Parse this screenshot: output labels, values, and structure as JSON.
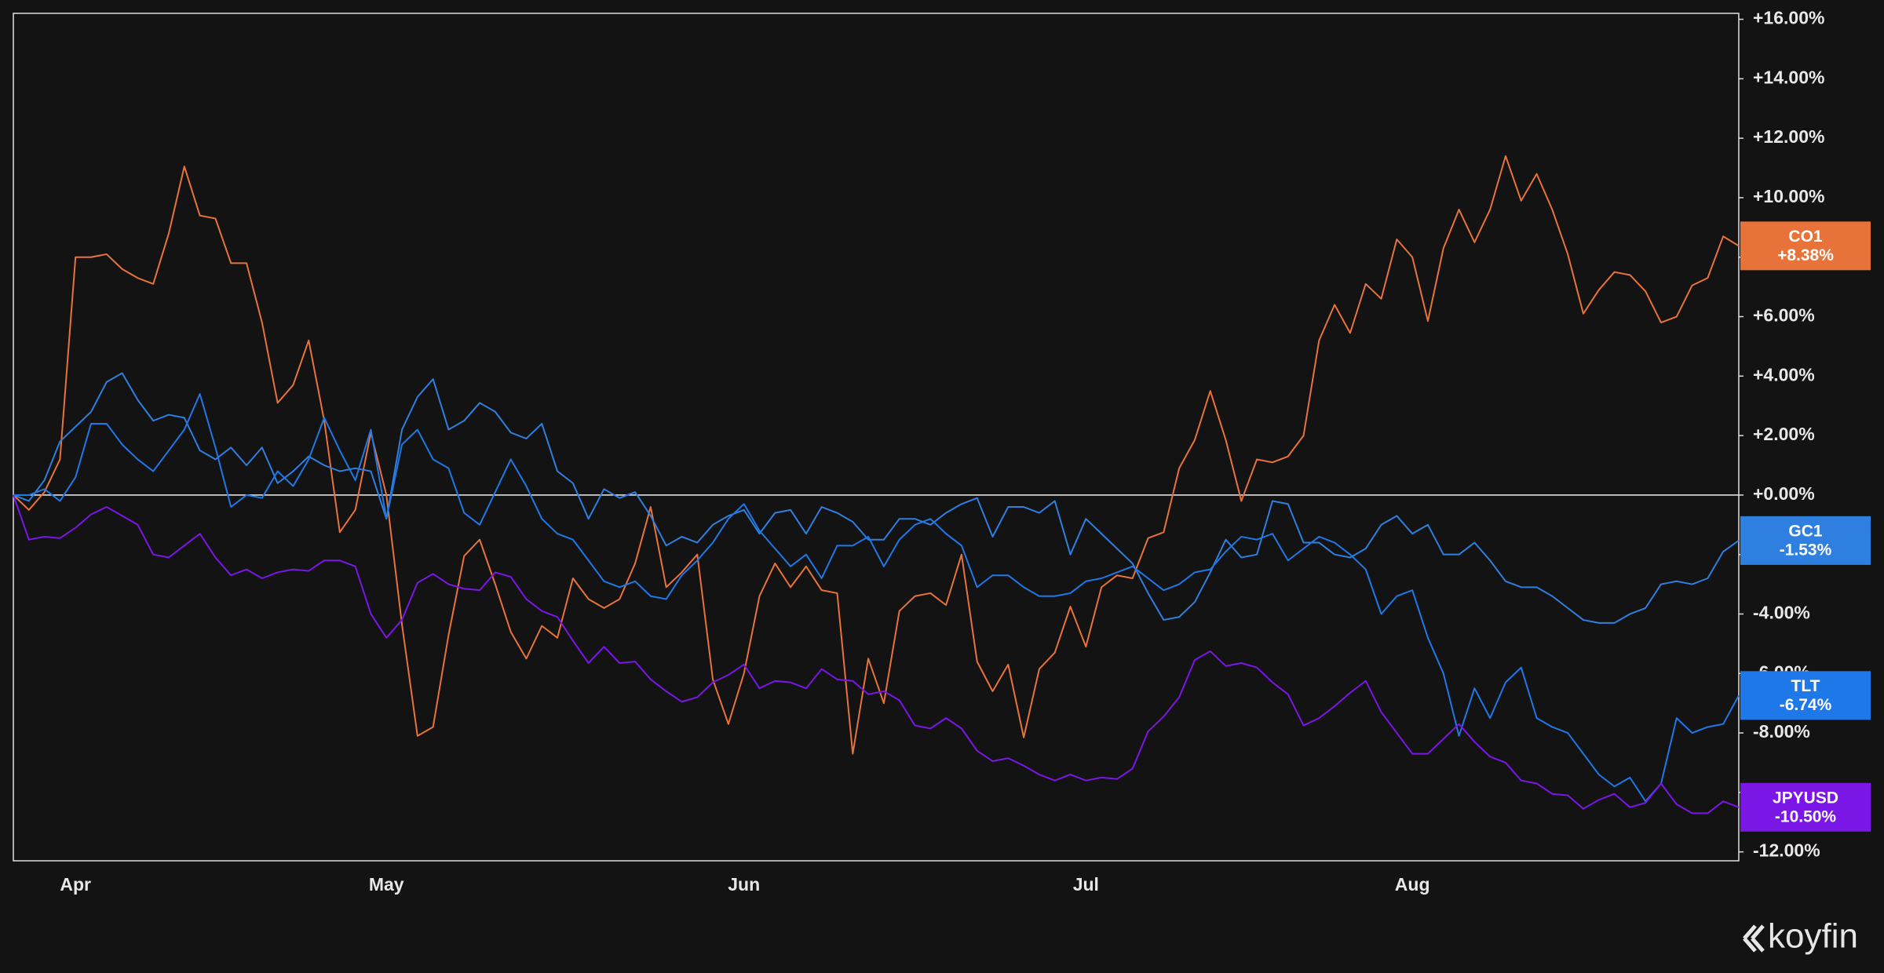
{
  "chart_data": {
    "type": "line",
    "brand": "koyfin",
    "categories": [
      null,
      null,
      null,
      null,
      "Apr",
      null,
      null,
      null,
      null,
      null,
      null,
      null,
      null,
      null,
      null,
      null,
      null,
      null,
      null,
      null,
      null,
      null,
      null,
      null,
      "May",
      null,
      null,
      null,
      null,
      null,
      null,
      null,
      null,
      null,
      null,
      null,
      null,
      null,
      null,
      null,
      null,
      null,
      null,
      null,
      null,
      null,
      null,
      "Jun",
      null,
      null,
      null,
      null,
      null,
      null,
      null,
      null,
      null,
      null,
      null,
      null,
      null,
      null,
      null,
      null,
      null,
      null,
      null,
      null,
      null,
      "Jul",
      null,
      null,
      null,
      null,
      null,
      null,
      null,
      null,
      null,
      null,
      null,
      null,
      null,
      null,
      null,
      null,
      null,
      null,
      null,
      null,
      "Aug",
      null,
      null,
      null,
      null,
      null,
      null,
      null,
      null,
      null,
      null,
      null,
      null,
      null,
      null,
      null,
      null,
      null,
      null,
      null,
      null,
      null
    ],
    "ylim": [
      -12.3,
      16.2
    ],
    "yticks": [
      {
        "value": 16,
        "label": "+16.00%"
      },
      {
        "value": 14,
        "label": "+14.00%"
      },
      {
        "value": 12,
        "label": "+12.00%"
      },
      {
        "value": 10,
        "label": "+10.00%"
      },
      {
        "value": 8,
        "label": "+8.00%"
      },
      {
        "value": 6,
        "label": "+6.00%"
      },
      {
        "value": 4,
        "label": "+4.00%"
      },
      {
        "value": 2,
        "label": "+2.00%"
      },
      {
        "value": 0,
        "label": "+0.00%"
      },
      {
        "value": -2,
        "label": "-2.00%"
      },
      {
        "value": -4,
        "label": "-4.00%"
      },
      {
        "value": -6,
        "label": "-6.00%"
      },
      {
        "value": -8,
        "label": "-8.00%"
      },
      {
        "value": -10,
        "label": "-10.00%"
      },
      {
        "value": -12,
        "label": "-12.00%"
      }
    ],
    "zero_line": true,
    "series": [
      {
        "name": "CO1",
        "color": "#e8733a",
        "values": [
          0,
          -0.5,
          0.1,
          1.2,
          8.0,
          8.0,
          8.1,
          7.6,
          7.3,
          7.1,
          8.8,
          11.05,
          9.4,
          9.3,
          7.8,
          7.8,
          5.8,
          3.1,
          3.7,
          5.2,
          2.5,
          -1.25,
          -0.5,
          2.1,
          0,
          -4.35,
          -8.1,
          -7.8,
          -4.7,
          -2.05,
          -1.5,
          -3.0,
          -4.6,
          -5.5,
          -4.4,
          -4.8,
          -2.8,
          -3.5,
          -3.8,
          -3.5,
          -2.3,
          -0.4,
          -3.1,
          -2.6,
          -2.0,
          -6.2,
          -7.7,
          -6.0,
          -3.4,
          -2.3,
          -3.1,
          -2.4,
          -3.2,
          -3.3,
          -8.7,
          -5.5,
          -7.0,
          -3.9,
          -3.4,
          -3.3,
          -3.7,
          -2.0,
          -5.6,
          -6.6,
          -5.7,
          -8.15,
          -5.85,
          -5.3,
          -3.75,
          -5.1,
          -3.1,
          -2.7,
          -2.8,
          -1.45,
          -1.25,
          0.9,
          1.85,
          3.5,
          1.85,
          -0.2,
          1.2,
          1.1,
          1.3,
          2.0,
          5.2,
          6.4,
          5.45,
          7.1,
          6.6,
          8.6,
          8.0,
          5.85,
          8.3,
          9.6,
          8.5,
          9.6,
          11.4,
          9.9,
          10.8,
          9.6,
          8.1,
          6.1,
          6.9,
          7.5,
          7.4,
          6.85,
          5.8,
          6.0,
          7.05,
          7.3,
          8.7,
          8.38
        ],
        "value_labels": [
          null,
          null,
          null,
          null,
          null,
          null,
          null,
          null,
          null,
          null,
          null,
          null,
          null,
          null,
          null,
          null,
          null,
          null,
          null,
          null,
          null,
          null,
          null,
          null,
          null,
          null,
          null,
          null,
          null,
          null,
          null,
          null,
          null,
          null,
          null,
          null,
          null,
          null,
          null,
          null,
          null,
          null,
          null,
          null,
          null,
          null,
          null,
          null,
          null,
          null,
          null,
          null,
          null,
          null,
          null,
          null,
          null,
          null,
          null,
          null,
          null,
          null,
          null,
          null,
          null,
          null,
          null,
          null,
          null,
          null,
          null,
          null,
          null,
          null,
          null,
          null,
          null,
          null,
          null,
          null,
          null,
          null,
          null,
          null,
          null,
          null,
          null,
          null,
          null,
          null,
          null,
          null,
          null,
          null,
          null,
          null,
          null,
          null,
          null,
          null,
          null,
          null,
          null,
          null,
          null,
          null,
          null,
          null,
          null,
          null,
          null,
          "+8.38%"
        ]
      },
      {
        "name": "GC1",
        "color": "#2f7fe0",
        "values": [
          0,
          -0.2,
          0.5,
          1.8,
          2.3,
          2.8,
          3.8,
          4.1,
          3.2,
          2.5,
          2.7,
          2.6,
          1.5,
          1.2,
          1.6,
          1.0,
          1.6,
          0.4,
          0.8,
          1.3,
          1.0,
          0.8,
          0.9,
          0.8,
          -0.8,
          2.2,
          3.3,
          3.9,
          2.2,
          2.5,
          3.1,
          2.8,
          2.1,
          1.9,
          2.4,
          0.8,
          0.4,
          -0.8,
          0.2,
          -0.1,
          0.1,
          -0.7,
          -1.7,
          -1.4,
          -1.6,
          -1.0,
          -0.7,
          -0.5,
          -1.3,
          -0.6,
          -0.5,
          -1.3,
          -0.4,
          -0.6,
          -0.9,
          -1.5,
          -1.5,
          -0.8,
          -0.8,
          -1.0,
          -0.6,
          -0.3,
          -0.1,
          -1.4,
          -0.4,
          -0.4,
          -0.6,
          -0.2,
          -2.0,
          -0.8,
          -1.3,
          -1.8,
          -2.3,
          -3.3,
          -4.2,
          -4.1,
          -3.6,
          -2.6,
          -1.5,
          -2.1,
          -2.0,
          -0.2,
          -0.3,
          -1.6,
          -1.6,
          -2.0,
          -2.1,
          -1.8,
          -1.0,
          -0.7,
          -1.3,
          -1.0,
          -2.0,
          -2.0,
          -1.6,
          -2.2,
          -2.9,
          -3.1,
          -3.1,
          -3.4,
          -3.8,
          -4.2,
          -4.3,
          -4.3,
          -4.0,
          -3.8,
          -3.0,
          -2.9,
          -3.0,
          -2.8,
          -1.9,
          -1.53
        ],
        "value_labels": [
          null,
          null,
          null,
          null,
          null,
          null,
          null,
          null,
          null,
          null,
          null,
          null,
          null,
          null,
          null,
          null,
          null,
          null,
          null,
          null,
          null,
          null,
          null,
          null,
          null,
          null,
          null,
          null,
          null,
          null,
          null,
          null,
          null,
          null,
          null,
          null,
          null,
          null,
          null,
          null,
          null,
          null,
          null,
          null,
          null,
          null,
          null,
          null,
          null,
          null,
          null,
          null,
          null,
          null,
          null,
          null,
          null,
          null,
          null,
          null,
          null,
          null,
          null,
          null,
          null,
          null,
          null,
          null,
          null,
          null,
          null,
          null,
          null,
          null,
          null,
          null,
          null,
          null,
          null,
          null,
          null,
          null,
          null,
          null,
          null,
          null,
          null,
          null,
          null,
          null,
          null,
          null,
          null,
          null,
          null,
          null,
          null,
          null,
          null,
          null,
          null,
          null,
          null,
          null,
          null,
          null,
          null,
          null,
          null,
          null,
          null,
          "-1.53%"
        ]
      },
      {
        "name": "TLT",
        "color": "#1f78e8",
        "values": [
          0,
          0,
          0.2,
          -0.2,
          0.6,
          2.4,
          2.4,
          1.7,
          1.2,
          0.8,
          1.5,
          2.2,
          3.4,
          1.6,
          -0.4,
          0.0,
          -0.1,
          0.8,
          0.3,
          1.2,
          2.6,
          1.5,
          0.5,
          2.2,
          -0.8,
          1.7,
          2.2,
          1.2,
          0.9,
          -0.6,
          -1.0,
          0.1,
          1.2,
          0.3,
          -0.8,
          -1.3,
          -1.5,
          -2.2,
          -2.9,
          -3.1,
          -2.9,
          -3.4,
          -3.5,
          -2.7,
          -2.2,
          -1.6,
          -0.8,
          -0.3,
          -1.2,
          -1.8,
          -2.4,
          -2.0,
          -2.8,
          -1.7,
          -1.7,
          -1.4,
          -2.4,
          -1.5,
          -1.0,
          -0.8,
          -1.3,
          -1.7,
          -3.1,
          -2.7,
          -2.7,
          -3.1,
          -3.4,
          -3.4,
          -3.3,
          -2.9,
          -2.8,
          -2.6,
          -2.4,
          -2.8,
          -3.2,
          -3.0,
          -2.6,
          -2.5,
          -1.9,
          -1.4,
          -1.5,
          -1.3,
          -2.2,
          -1.8,
          -1.4,
          -1.6,
          -2.0,
          -2.5,
          -4.0,
          -3.4,
          -3.2,
          -4.8,
          -6.0,
          -8.1,
          -6.5,
          -7.5,
          -6.3,
          -5.8,
          -7.5,
          -7.8,
          -8.0,
          -8.7,
          -9.4,
          -9.8,
          -9.5,
          -10.3,
          -9.7,
          -7.5,
          -8.0,
          -7.8,
          -7.7,
          -6.74
        ],
        "value_labels": [
          null,
          null,
          null,
          null,
          null,
          null,
          null,
          null,
          null,
          null,
          null,
          null,
          null,
          null,
          null,
          null,
          null,
          null,
          null,
          null,
          null,
          null,
          null,
          null,
          null,
          null,
          null,
          null,
          null,
          null,
          null,
          null,
          null,
          null,
          null,
          null,
          null,
          null,
          null,
          null,
          null,
          null,
          null,
          null,
          null,
          null,
          null,
          null,
          null,
          null,
          null,
          null,
          null,
          null,
          null,
          null,
          null,
          null,
          null,
          null,
          null,
          null,
          null,
          null,
          null,
          null,
          null,
          null,
          null,
          null,
          null,
          null,
          null,
          null,
          null,
          null,
          null,
          null,
          null,
          null,
          null,
          null,
          null,
          null,
          null,
          null,
          null,
          null,
          null,
          null,
          null,
          null,
          null,
          null,
          null,
          null,
          null,
          null,
          null,
          null,
          null,
          null,
          null,
          null,
          null,
          null,
          null,
          null,
          null,
          null,
          null,
          "-6.74%"
        ]
      },
      {
        "name": "JPYUSD",
        "color": "#7a16e6",
        "values": [
          0,
          -1.5,
          -1.4,
          -1.45,
          -1.1,
          -0.65,
          -0.4,
          -0.7,
          -1.0,
          -2.0,
          -2.1,
          -1.7,
          -1.3,
          -2.1,
          -2.7,
          -2.5,
          -2.8,
          -2.6,
          -2.5,
          -2.55,
          -2.2,
          -2.2,
          -2.4,
          -4.0,
          -4.8,
          -4.2,
          -2.95,
          -2.65,
          -3.0,
          -3.15,
          -3.2,
          -2.6,
          -2.75,
          -3.5,
          -3.9,
          -4.1,
          -4.9,
          -5.65,
          -5.1,
          -5.65,
          -5.6,
          -6.2,
          -6.6,
          -6.95,
          -6.8,
          -6.3,
          -6.05,
          -5.7,
          -6.5,
          -6.25,
          -6.3,
          -6.5,
          -5.85,
          -6.2,
          -6.25,
          -6.7,
          -6.6,
          -6.9,
          -7.75,
          -7.85,
          -7.5,
          -7.85,
          -8.6,
          -8.95,
          -8.85,
          -9.1,
          -9.4,
          -9.6,
          -9.4,
          -9.6,
          -9.5,
          -9.55,
          -9.2,
          -7.95,
          -7.45,
          -6.8,
          -5.55,
          -5.25,
          -5.75,
          -5.65,
          -5.8,
          -6.3,
          -6.7,
          -7.75,
          -7.5,
          -7.1,
          -6.65,
          -6.25,
          -7.3,
          -8.0,
          -8.7,
          -8.7,
          -8.2,
          -7.7,
          -8.3,
          -8.8,
          -9.0,
          -9.6,
          -9.7,
          -10.05,
          -10.1,
          -10.55,
          -10.25,
          -10.05,
          -10.5,
          -10.35,
          -9.7,
          -10.4,
          -10.7,
          -10.7,
          -10.3,
          -10.5
        ],
        "value_labels": [
          null,
          null,
          null,
          null,
          null,
          null,
          null,
          null,
          null,
          null,
          null,
          null,
          null,
          null,
          null,
          null,
          null,
          null,
          null,
          null,
          null,
          null,
          null,
          null,
          null,
          null,
          null,
          null,
          null,
          null,
          null,
          null,
          null,
          null,
          null,
          null,
          null,
          null,
          null,
          null,
          null,
          null,
          null,
          null,
          null,
          null,
          null,
          null,
          null,
          null,
          null,
          null,
          null,
          null,
          null,
          null,
          null,
          null,
          null,
          null,
          null,
          null,
          null,
          null,
          null,
          null,
          null,
          null,
          null,
          null,
          null,
          null,
          null,
          null,
          null,
          null,
          null,
          null,
          null,
          null,
          null,
          null,
          null,
          null,
          null,
          null,
          null,
          null,
          null,
          null,
          null,
          null,
          null,
          null,
          null,
          null,
          null,
          null,
          null,
          null,
          null,
          null,
          null,
          null,
          null,
          null,
          null,
          null,
          null,
          null,
          null,
          "-10.50%"
        ]
      }
    ]
  }
}
